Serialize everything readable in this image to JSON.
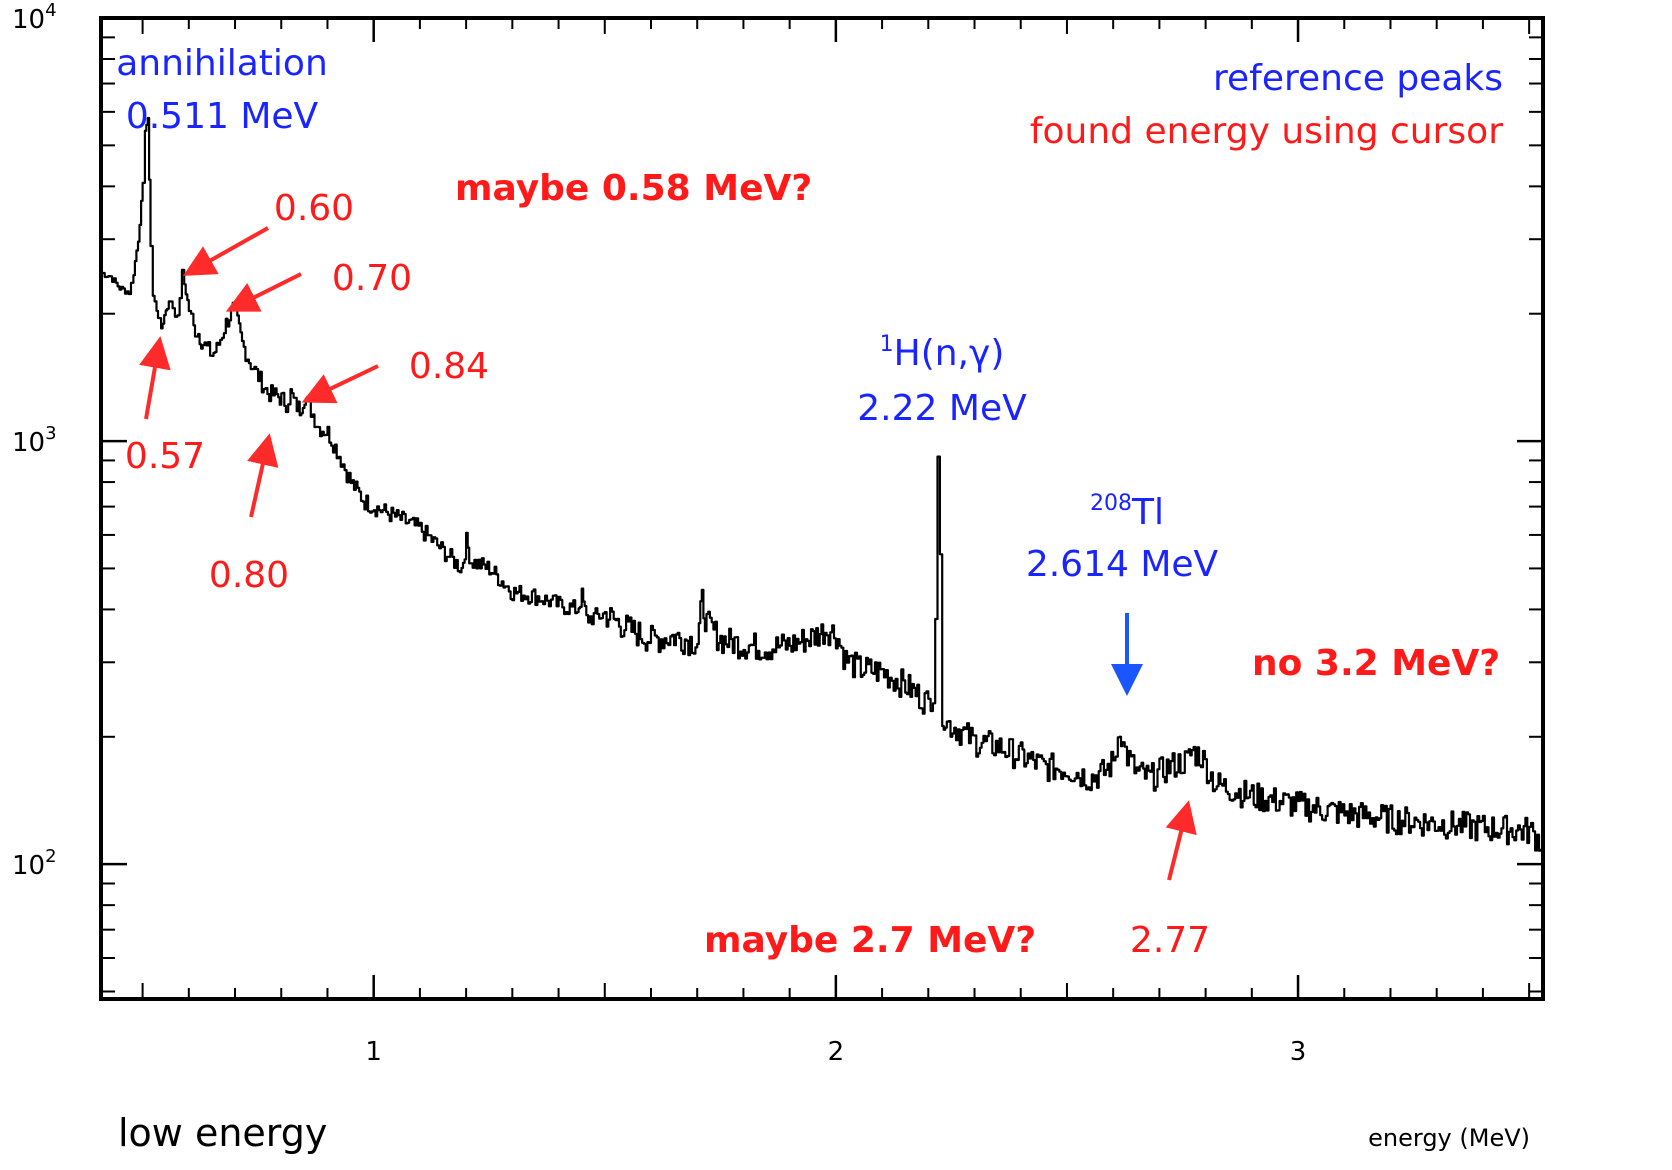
{
  "chart_data": {
    "type": "line",
    "xlabel": "energy (MeV)",
    "x_corner_label": "low energy",
    "log_y": true,
    "xlim": [
      0.41,
      3.53
    ],
    "ylim": [
      48,
      10000
    ],
    "x_ticks": [
      {
        "v": 1,
        "label": "1"
      },
      {
        "v": 2,
        "label": "2"
      },
      {
        "v": 3,
        "label": "3"
      }
    ],
    "y_ticks": [
      {
        "v": 100,
        "base": "10",
        "exp": "2"
      },
      {
        "v": 1000,
        "base": "10",
        "exp": "3"
      },
      {
        "v": 10000,
        "base": "10",
        "exp": "4"
      }
    ],
    "legend": {
      "reference": "reference peaks",
      "found": "found energy using cursor"
    },
    "colors": {
      "reference": "#1a24ff",
      "found": "#ff1a1a",
      "spectrum": "#000000"
    },
    "spectrum": {
      "x": [
        0.41,
        0.43,
        0.45,
        0.47,
        0.475,
        0.48,
        0.49,
        0.5,
        0.505,
        0.508,
        0.511,
        0.514,
        0.517,
        0.522,
        0.53,
        0.54,
        0.55,
        0.56,
        0.57,
        0.575,
        0.58,
        0.585,
        0.59,
        0.6,
        0.605,
        0.61,
        0.62,
        0.63,
        0.65,
        0.66,
        0.68,
        0.695,
        0.7,
        0.705,
        0.715,
        0.73,
        0.75,
        0.77,
        0.79,
        0.8,
        0.81,
        0.82,
        0.83,
        0.84,
        0.85,
        0.86,
        0.88,
        0.9,
        0.92,
        0.95,
        0.98,
        1.0,
        1.05,
        1.1,
        1.15,
        1.19,
        1.2,
        1.21,
        1.25,
        1.3,
        1.35,
        1.4,
        1.44,
        1.45,
        1.46,
        1.5,
        1.55,
        1.6,
        1.65,
        1.7,
        1.71,
        1.72,
        1.75,
        1.8,
        1.85,
        1.9,
        1.95,
        1.98,
        2.0,
        2.02,
        2.05,
        2.1,
        2.15,
        2.18,
        2.2,
        2.21,
        2.215,
        2.22,
        2.225,
        2.23,
        2.24,
        2.26,
        2.3,
        2.35,
        2.4,
        2.45,
        2.5,
        2.55,
        2.58,
        2.6,
        2.61,
        2.614,
        2.62,
        2.63,
        2.65,
        2.68,
        2.7,
        2.72,
        2.75,
        2.76,
        2.77,
        2.79,
        2.82,
        2.9,
        3.0,
        3.1,
        3.2,
        3.3,
        3.4,
        3.5,
        3.53
      ],
      "y": [
        2500,
        2450,
        2300,
        2250,
        2350,
        2500,
        3000,
        4000,
        5500,
        5600,
        5700,
        4200,
        2900,
        2200,
        2050,
        1850,
        2050,
        2150,
        2000,
        1950,
        2200,
        2500,
        2350,
        2050,
        1950,
        1850,
        1800,
        1700,
        1600,
        1650,
        1900,
        2050,
        2000,
        1900,
        1700,
        1550,
        1420,
        1300,
        1280,
        1260,
        1230,
        1300,
        1220,
        1190,
        1280,
        1210,
        1080,
        1050,
        950,
        800,
        720,
        700,
        660,
        620,
        550,
        500,
        580,
        520,
        500,
        440,
        430,
        410,
        400,
        430,
        380,
        390,
        360,
        340,
        345,
        335,
        420,
        370,
        340,
        330,
        325,
        330,
        345,
        360,
        350,
        305,
        290,
        285,
        265,
        250,
        240,
        260,
        400,
        950,
        500,
        230,
        215,
        210,
        195,
        190,
        180,
        170,
        168,
        160,
        165,
        175,
        200,
        215,
        190,
        180,
        165,
        160,
        165,
        170,
        175,
        175,
        185,
        180,
        155,
        145,
        138,
        132,
        128,
        125,
        122,
        120,
        112
      ]
    },
    "annotations": {
      "annihilation": {
        "line1": "annihilation",
        "line2": "0.511 MeV"
      },
      "hydrogen": {
        "sup": "1",
        "main": "H(n,",
        "greek": "γ",
        "close": ")",
        "energy": "2.22 MeV"
      },
      "thallium": {
        "sup": "208",
        "main": "Tl",
        "energy": "2.614 MeV"
      },
      "found": [
        {
          "label": "0.60",
          "x": 0.6
        },
        {
          "label": "0.70",
          "x": 0.7
        },
        {
          "label": "0.84",
          "x": 0.84
        },
        {
          "label": "0.57",
          "x": 0.57
        },
        {
          "label": "0.80",
          "x": 0.8
        },
        {
          "label": "2.77",
          "x": 2.77
        }
      ],
      "questions": {
        "q_058": "maybe 0.58 MeV?",
        "q_27": "maybe 2.7 MeV?",
        "q_32": "no 3.2 MeV?"
      }
    }
  }
}
